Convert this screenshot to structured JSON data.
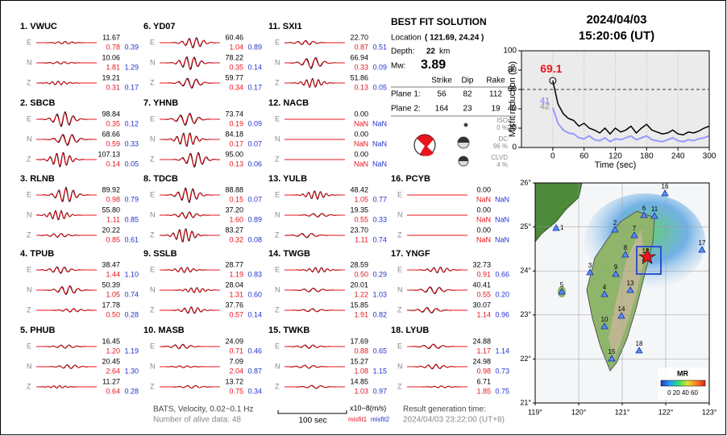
{
  "stations": [
    {
      "name": "1.  VWUC",
      "components": [
        {
          "label": "E",
          "amplitude": "11.67",
          "misfit1": "0.78",
          "misfit2": "0.39"
        },
        {
          "label": "N",
          "amplitude": "10.06",
          "misfit1": "1.81",
          "misfit2": "1.29"
        },
        {
          "label": "Z",
          "amplitude": "19.21",
          "misfit1": "0.31",
          "misfit2": "0.17"
        }
      ]
    },
    {
      "name": "2.  SBCB",
      "components": [
        {
          "label": "E",
          "amplitude": "98.84",
          "misfit1": "0.35",
          "misfit2": "0.12"
        },
        {
          "label": "N",
          "amplitude": "68.66",
          "misfit1": "0.59",
          "misfit2": "0.33"
        },
        {
          "label": "Z",
          "amplitude": "107.13",
          "misfit1": "0.14",
          "misfit2": "0.05"
        }
      ]
    },
    {
      "name": "3.  RLNB",
      "components": [
        {
          "label": "E",
          "amplitude": "89.92",
          "misfit1": "0.98",
          "misfit2": "0.79"
        },
        {
          "label": "N",
          "amplitude": "55.80",
          "misfit1": "1.11",
          "misfit2": "0.85"
        },
        {
          "label": "Z",
          "amplitude": "20.22",
          "misfit1": "0.85",
          "misfit2": "0.61"
        }
      ]
    },
    {
      "name": "4.  TPUB",
      "components": [
        {
          "label": "E",
          "amplitude": "38.47",
          "misfit1": "1.44",
          "misfit2": "1.10"
        },
        {
          "label": "N",
          "amplitude": "50.39",
          "misfit1": "1.05",
          "misfit2": "0.74"
        },
        {
          "label": "Z",
          "amplitude": "17.78",
          "misfit1": "0.50",
          "misfit2": "0.28"
        }
      ]
    },
    {
      "name": "5.  PHUB",
      "components": [
        {
          "label": "E",
          "amplitude": "16.45",
          "misfit1": "1.20",
          "misfit2": "1.19"
        },
        {
          "label": "N",
          "amplitude": "20.45",
          "misfit1": "2.64",
          "misfit2": "1.30"
        },
        {
          "label": "Z",
          "amplitude": "11.27",
          "misfit1": "0.64",
          "misfit2": "0.28"
        }
      ]
    },
    {
      "name": "6.  YD07",
      "components": [
        {
          "label": "E",
          "amplitude": "60.46",
          "misfit1": "1.04",
          "misfit2": "0.89"
        },
        {
          "label": "N",
          "amplitude": "78.22",
          "misfit1": "0.35",
          "misfit2": "0.14"
        },
        {
          "label": "Z",
          "amplitude": "59.77",
          "misfit1": "0.34",
          "misfit2": "0.17"
        }
      ]
    },
    {
      "name": "7.  YHNB",
      "components": [
        {
          "label": "E",
          "amplitude": "73.74",
          "misfit1": "0.19",
          "misfit2": "0.09"
        },
        {
          "label": "N",
          "amplitude": "84.18",
          "misfit1": "0.17",
          "misfit2": "0.07"
        },
        {
          "label": "Z",
          "amplitude": "95.00",
          "misfit1": "0.13",
          "misfit2": "0.06"
        }
      ]
    },
    {
      "name": "8.  TDCB",
      "components": [
        {
          "label": "E",
          "amplitude": "88.88",
          "misfit1": "0.15",
          "misfit2": "0.07"
        },
        {
          "label": "N",
          "amplitude": "37.20",
          "misfit1": "1.60",
          "misfit2": "0.89"
        },
        {
          "label": "Z",
          "amplitude": "83.27",
          "misfit1": "0.32",
          "misfit2": "0.08"
        }
      ]
    },
    {
      "name": "9.  SSLB",
      "components": [
        {
          "label": "E",
          "amplitude": "28.77",
          "misfit1": "1.19",
          "misfit2": "0.83"
        },
        {
          "label": "N",
          "amplitude": "28.04",
          "misfit1": "1.31",
          "misfit2": "0.60"
        },
        {
          "label": "Z",
          "amplitude": "37.76",
          "misfit1": "0.57",
          "misfit2": "0.14"
        }
      ]
    },
    {
      "name": "10.  MASB",
      "components": [
        {
          "label": "E",
          "amplitude": "24.09",
          "misfit1": "0.71",
          "misfit2": "0.46"
        },
        {
          "label": "N",
          "amplitude": "7.09",
          "misfit1": "2.04",
          "misfit2": "0.87"
        },
        {
          "label": "Z",
          "amplitude": "13.72",
          "misfit1": "0.75",
          "misfit2": "0.34"
        }
      ]
    },
    {
      "name": "11.  SXI1",
      "components": [
        {
          "label": "E",
          "amplitude": "22.70",
          "misfit1": "0.87",
          "misfit2": "0.51"
        },
        {
          "label": "N",
          "amplitude": "66.94",
          "misfit1": "0.33",
          "misfit2": "0.09"
        },
        {
          "label": "Z",
          "amplitude": "51.86",
          "misfit1": "0.13",
          "misfit2": "0.05"
        }
      ]
    },
    {
      "name": "12.  NACB",
      "components": [
        {
          "label": "E",
          "amplitude": "0.00",
          "misfit1": "NaN",
          "misfit2": "NaN"
        },
        {
          "label": "N",
          "amplitude": "0.00",
          "misfit1": "NaN",
          "misfit2": "NaN"
        },
        {
          "label": "Z",
          "amplitude": "0.00",
          "misfit1": "NaN",
          "misfit2": "NaN"
        }
      ]
    },
    {
      "name": "13.  YULB",
      "components": [
        {
          "label": "E",
          "amplitude": "48.42",
          "misfit1": "1.05",
          "misfit2": "0.77"
        },
        {
          "label": "N",
          "amplitude": "19.35",
          "misfit1": "0.55",
          "misfit2": "0.33"
        },
        {
          "label": "Z",
          "amplitude": "23.70",
          "misfit1": "1.11",
          "misfit2": "0.74"
        }
      ]
    },
    {
      "name": "14.  TWGB",
      "components": [
        {
          "label": "E",
          "amplitude": "28.59",
          "misfit1": "0.50",
          "misfit2": "0.29"
        },
        {
          "label": "N",
          "amplitude": "20.01",
          "misfit1": "1.22",
          "misfit2": "1.03"
        },
        {
          "label": "Z",
          "amplitude": "15.85",
          "misfit1": "1.91",
          "misfit2": "0.82"
        }
      ]
    },
    {
      "name": "15.  TWKB",
      "components": [
        {
          "label": "E",
          "amplitude": "17.69",
          "misfit1": "0.88",
          "misfit2": "0.65"
        },
        {
          "label": "N",
          "amplitude": "15.27",
          "misfit1": "1.08",
          "misfit2": "1.15"
        },
        {
          "label": "Z",
          "amplitude": "14.85",
          "misfit1": "1.03",
          "misfit2": "0.97"
        }
      ]
    },
    {
      "name": "16.  PCYB",
      "components": [
        {
          "label": "E",
          "amplitude": "0.00",
          "misfit1": "NaN",
          "misfit2": "NaN"
        },
        {
          "label": "N",
          "amplitude": "0.00",
          "misfit1": "NaN",
          "misfit2": "NaN"
        },
        {
          "label": "Z",
          "amplitude": "0.00",
          "misfit1": "NaN",
          "misfit2": "NaN"
        }
      ]
    },
    {
      "name": "17.  YNGF",
      "components": [
        {
          "label": "E",
          "amplitude": "32.73",
          "misfit1": "0.91",
          "misfit2": "0.66"
        },
        {
          "label": "N",
          "amplitude": "40.41",
          "misfit1": "0.55",
          "misfit2": "0.20"
        },
        {
          "label": "Z",
          "amplitude": "30.07",
          "misfit1": "1.14",
          "misfit2": "0.96"
        }
      ]
    },
    {
      "name": "18.  LYUB",
      "components": [
        {
          "label": "E",
          "amplitude": "24.88",
          "misfit1": "1.17",
          "misfit2": "1.14"
        },
        {
          "label": "N",
          "amplitude": "24.98",
          "misfit1": "0.98",
          "misfit2": "0.73"
        },
        {
          "label": "Z",
          "amplitude": "6.71",
          "misfit1": "1.85",
          "misfit2": "0.75"
        }
      ]
    }
  ],
  "solution": {
    "title": "BEST FIT SOLUTION",
    "location_label": "Location",
    "location": "( 121.69, 24.24 )",
    "depth_label": "Depth:",
    "depth": "22",
    "depth_unit": "km",
    "mw_label": "Mw:",
    "mw": "3.89",
    "header": [
      "Strike",
      "Dip",
      "Rake"
    ],
    "planes": [
      {
        "label": "Plane 1:",
        "values": [
          "56",
          "82",
          "112"
        ]
      },
      {
        "label": "Plane 2:",
        "values": [
          "164",
          "23",
          "19"
        ]
      }
    ],
    "components": [
      {
        "name": "ISO",
        "percent": "0 %"
      },
      {
        "name": "DC",
        "percent": "96 %"
      },
      {
        "name": "CLVD",
        "percent": "4 %"
      }
    ]
  },
  "chart_data": {
    "type": "line",
    "title": "2024/04/03",
    "subtitle": "15:20:06  (UT)",
    "x_label": "Time (sec)",
    "y_label": "Misfit reduction (%)",
    "x": [
      0,
      10,
      20,
      30,
      40,
      50,
      60,
      70,
      80,
      90,
      100,
      110,
      120,
      130,
      140,
      150,
      160,
      170,
      180,
      190,
      200,
      210,
      220,
      230,
      240,
      250,
      260,
      270,
      280,
      290,
      300
    ],
    "series": [
      {
        "color": "#000000",
        "values": [
          69.1,
          45,
          35,
          30,
          28,
          22,
          25,
          20,
          18,
          15,
          20,
          14,
          20,
          16,
          18,
          22,
          15,
          20,
          24,
          18,
          16,
          14,
          15,
          18,
          14,
          13,
          16,
          15,
          17,
          20,
          22
        ]
      },
      {
        "color": "#9999ff",
        "values": [
          41,
          25,
          18,
          15,
          14,
          10,
          9,
          12,
          8,
          7,
          10,
          6,
          9,
          8,
          10,
          12,
          8,
          10,
          12,
          8,
          7,
          6,
          8,
          10,
          7,
          6,
          8,
          7,
          9,
          10,
          12
        ]
      }
    ],
    "xlim": [
      -60,
      300
    ],
    "ylim": [
      0,
      100
    ],
    "xticks": [
      0,
      60,
      120,
      180,
      240,
      300
    ],
    "yticks": [
      0,
      20,
      40,
      60,
      80,
      100
    ],
    "reference_line": 60,
    "grid": true,
    "annotations": [
      {
        "text": "69.1",
        "color": "#e8141e"
      },
      {
        "text": "42",
        "color": "#aaaaaa"
      },
      {
        "text": "41",
        "color": "#9999ff"
      }
    ]
  },
  "map": {
    "x_labels": [
      "119°",
      "120°",
      "121°",
      "122°",
      "123°"
    ],
    "y_labels": [
      "26°",
      "25°",
      "24°",
      "23°",
      "22°",
      "21°"
    ],
    "stations": [
      "1",
      "2",
      "3",
      "4",
      "5",
      "6",
      "7",
      "8",
      "9",
      "10",
      "11",
      "12",
      "13",
      "14",
      "15",
      "16",
      "17",
      "18"
    ],
    "colorbar_title": "MR",
    "colorbar_labels": "0 20 40 60"
  },
  "footer": {
    "network": "BATS, Velocity, 0.02~0.1 Hz",
    "alive": "Number of alive data: 48",
    "scale": "100 sec",
    "unit": "x10−8(m/s)",
    "misfit1": "misfit1",
    "misfit2": "misfit2",
    "result_label": "Result generation time:",
    "result_time": "2024/04/03 23:22:00 (UT+8)"
  }
}
